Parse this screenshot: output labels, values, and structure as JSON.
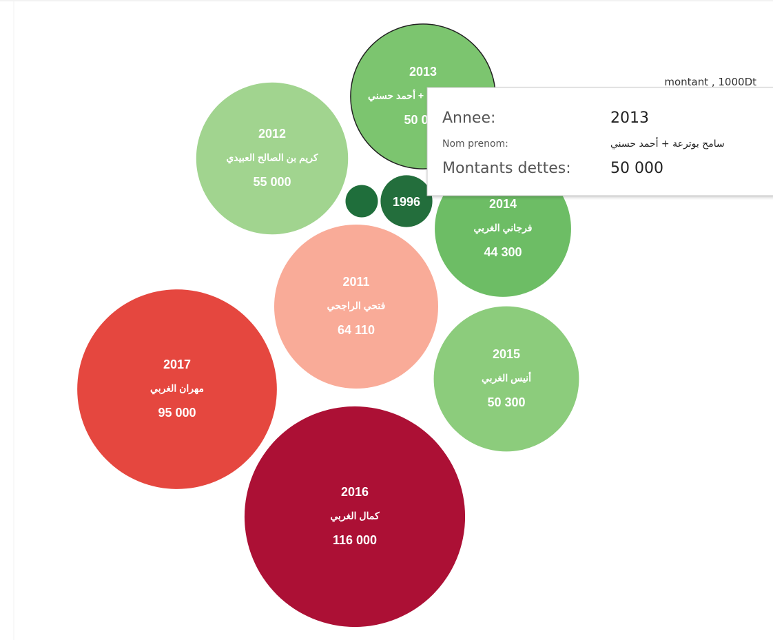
{
  "chart_data": {
    "type": "packed-bubble",
    "categories": [
      "2013",
      "2012",
      null,
      "1996",
      "2014",
      "2011",
      "2015",
      "2017",
      "2016"
    ],
    "names": [
      "سامح بوترعة + أحمد حسني",
      "كريم بن الصالح العبيدي",
      null,
      null,
      "فرجاني الغربي",
      "فتحي الراجحي",
      "أنيس الغربي",
      "مهران الغربي",
      "كمال الغربي"
    ],
    "values": [
      50000,
      55000,
      2500,
      6400,
      44300,
      64110,
      50300,
      95000,
      116000
    ],
    "value_labels": [
      "50 000",
      "55 000",
      null,
      null,
      "44 300",
      "64 110",
      "50 300",
      "95 000",
      "116 000"
    ],
    "colors": [
      "#7cc56f",
      "#a1d48f",
      "#1f6e3b",
      "#236e3c",
      "#6dbd65",
      "#f9ab98",
      "#8ccc7c",
      "#e5473f",
      "#ac1035"
    ],
    "legend_title": "montant , 1000Dt",
    "tooltip": {
      "rows": [
        {
          "label": "Annee:",
          "value": "2013"
        },
        {
          "label": "Nom prenom:",
          "value": "سامح بوترعة + أحمد حسني"
        },
        {
          "label": "Montants dettes:",
          "value": "50 000"
        }
      ]
    }
  }
}
